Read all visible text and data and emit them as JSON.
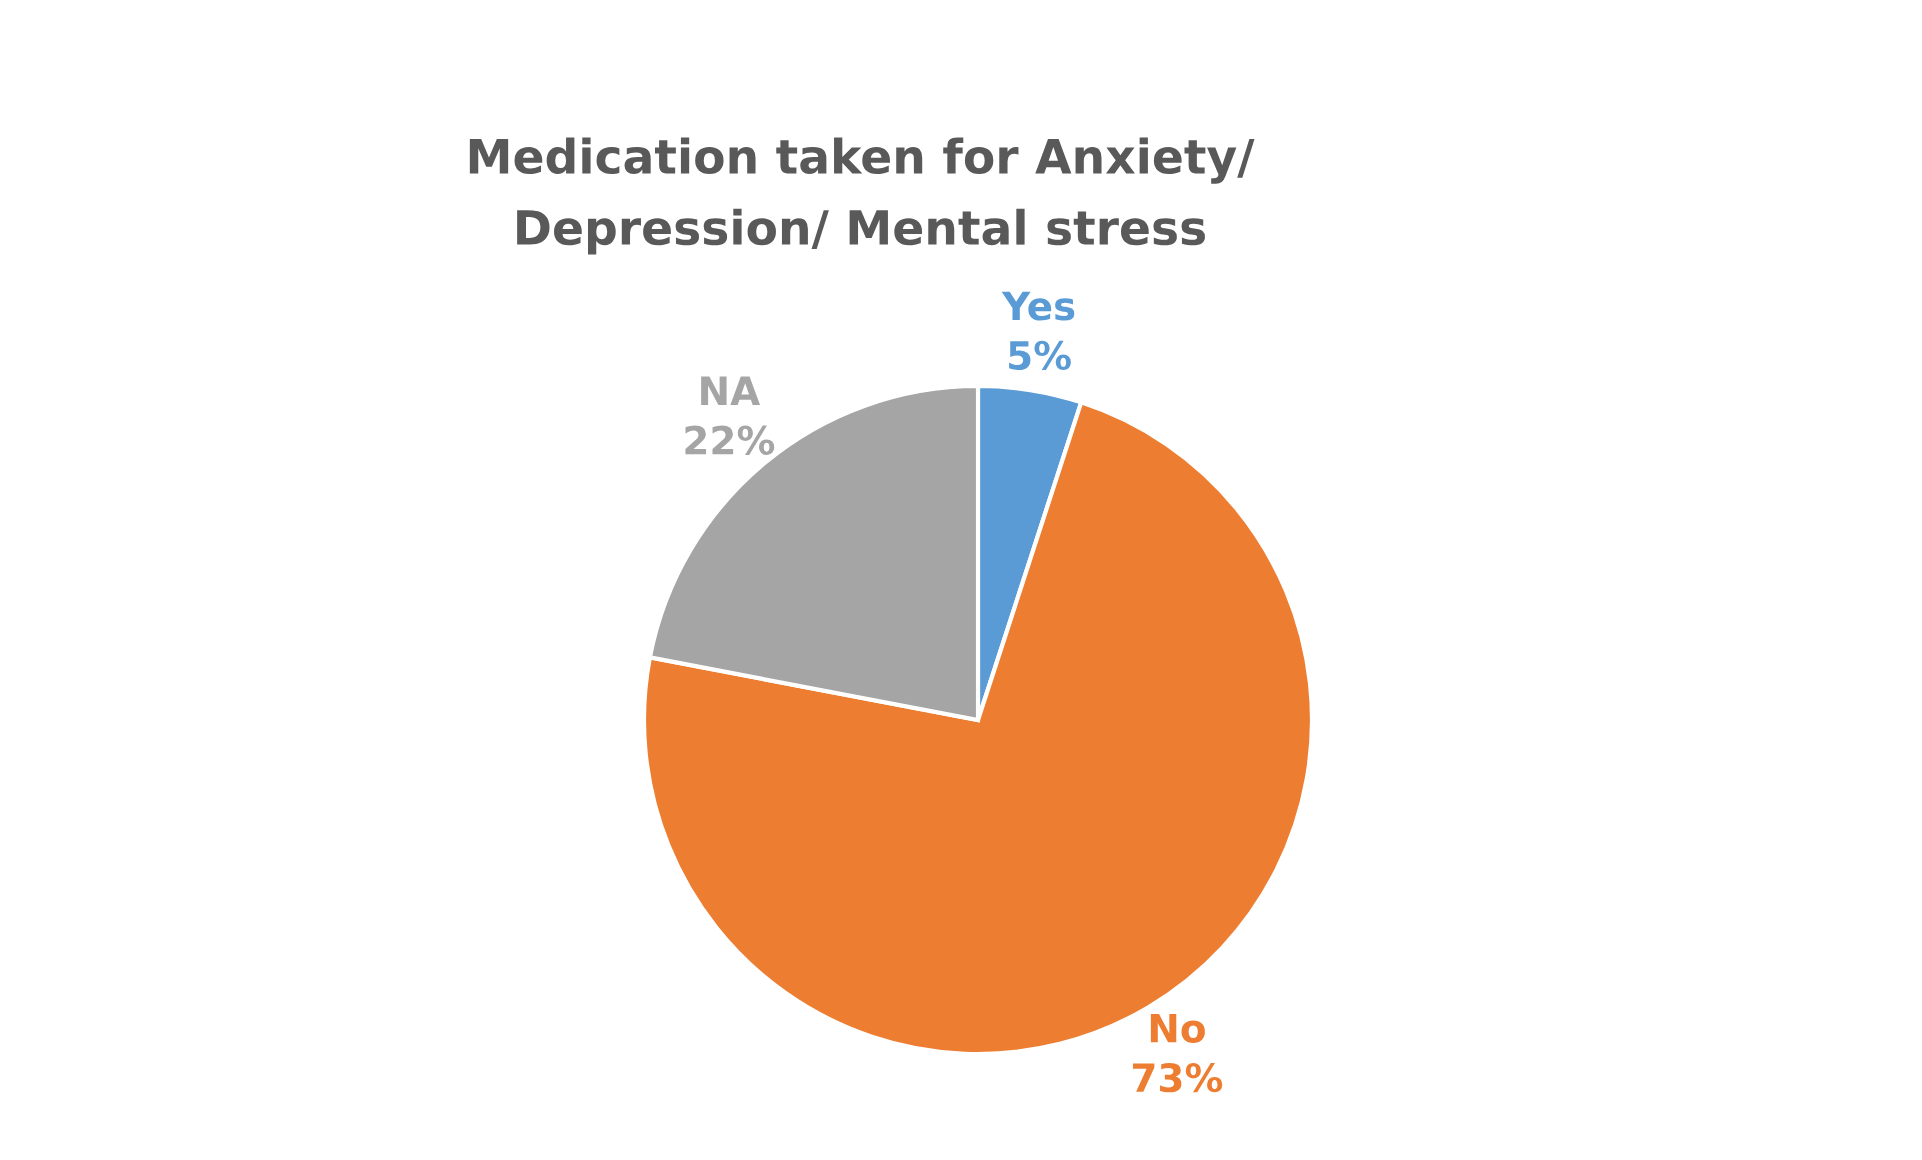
{
  "chart_data": {
    "type": "pie",
    "title": "Medication taken for Anxiety/\nDepression/ Mental stress",
    "categories": [
      "Yes",
      "No",
      "NA"
    ],
    "values": [
      5,
      73,
      22
    ],
    "value_labels": [
      "5%",
      "73%",
      "22%"
    ],
    "colors": [
      "#5b9bd5",
      "#ed7d31",
      "#a5a5a5"
    ],
    "legend": false
  }
}
